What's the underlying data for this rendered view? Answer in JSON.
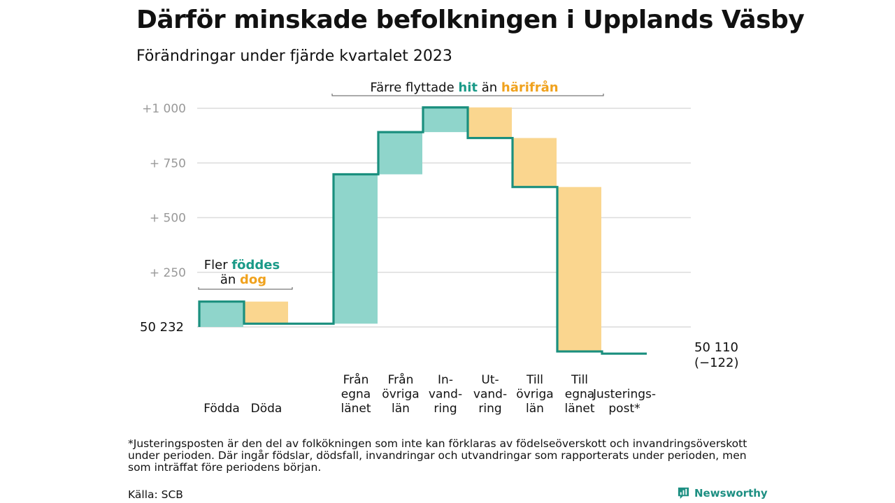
{
  "header": {
    "title": "Därför minskade befolkningen i Upplands Väsby",
    "subtitle": "Förändringar under fjärde kvartalet 2023"
  },
  "chart_data": {
    "type": "waterfall",
    "ylim": [
      -130,
      1000
    ],
    "y_ticks": [
      {
        "value": 1000,
        "label": "+1   000"
      },
      {
        "value": 750,
        "label": "+  750"
      },
      {
        "value": 500,
        "label": "+  500"
      },
      {
        "value": 250,
        "label": "+  250"
      },
      {
        "value": 0,
        "label": "50  232"
      }
    ],
    "grid": true,
    "colors": {
      "increase": "#8fd5cb",
      "decrease": "#fad68f",
      "line": "#1a8f7e",
      "hit": "#1a9a88",
      "harifran": "#f0a21e"
    },
    "start_value": 50232,
    "start_label": "50  232",
    "end_value_label": "50 110",
    "end_change_label": "(−122)",
    "steps": [
      {
        "label": [
          "Födda"
        ],
        "delta": 116,
        "kind": "increase"
      },
      {
        "label": [
          "Döda"
        ],
        "delta": -101,
        "kind": "decrease"
      },
      {
        "label": [],
        "delta": 0,
        "kind": "gap"
      },
      {
        "label": [
          "Från",
          "egna",
          "länet"
        ],
        "delta": 683,
        "kind": "increase"
      },
      {
        "label": [
          "Från",
          "övriga",
          "län"
        ],
        "delta": 193,
        "kind": "increase"
      },
      {
        "label": [
          "In-",
          "vand-",
          "ring"
        ],
        "delta": 113,
        "kind": "increase"
      },
      {
        "label": [
          "Ut-",
          "vand-",
          "ring"
        ],
        "delta": -140,
        "kind": "decrease"
      },
      {
        "label": [
          "Till",
          "övriga",
          "län"
        ],
        "delta": -224,
        "kind": "decrease"
      },
      {
        "label": [
          "Till",
          "egna",
          "länet"
        ],
        "delta": -752,
        "kind": "decrease"
      },
      {
        "label": [
          "Justerings-",
          "post*"
        ],
        "delta": -10,
        "kind": "adjust"
      }
    ],
    "annotations": {
      "births": {
        "line1_prefix": "Fler ",
        "line1_highlight": "föddes",
        "line2_prefix": "än ",
        "line2_highlight": "dog"
      },
      "migration": {
        "prefix": "Färre flyttade ",
        "highlight1": "hit",
        "middle": " än ",
        "highlight2": "härifrån"
      }
    }
  },
  "footnote": "*Justeringsposten är den del av folkökningen som inte kan förklaras av födelseöverskott och invandringsöverskott under perioden. Där ingår födslar, dödsfall, invandringar och utvandringar som rapporterats under perioden, men som inträffat före periodens början.",
  "source": "Källa: SCB",
  "brand": {
    "name": "Newsworthy",
    "icon": "bar-chart-icon"
  }
}
